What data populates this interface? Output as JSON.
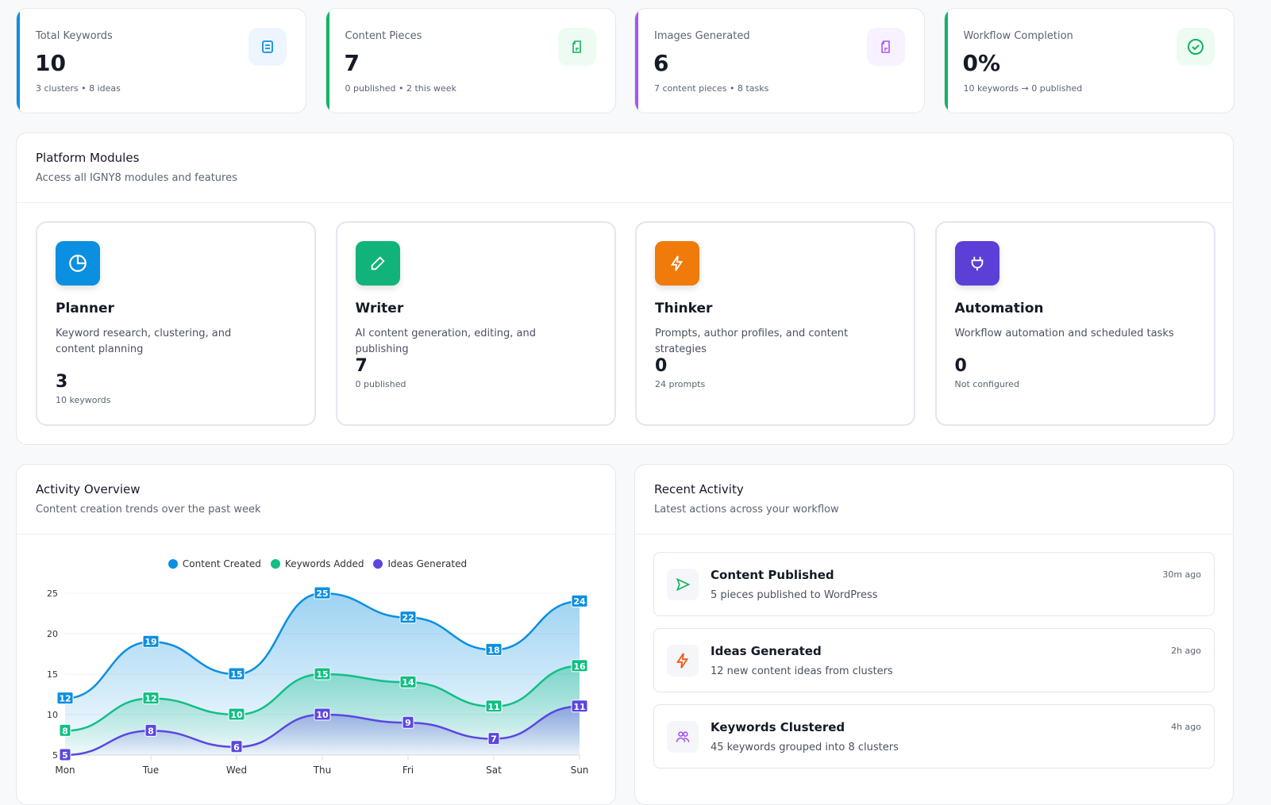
{
  "stats": [
    {
      "label": "Total Keywords",
      "value": "10",
      "sub": "3 clusters • 8 ideas",
      "color": "#0b8fe0",
      "icon": "list-doc-icon",
      "bg": "#eef5ff"
    },
    {
      "label": "Content Pieces",
      "value": "7",
      "sub": "0 published • 2 this week",
      "color": "#12b363",
      "icon": "file-icon",
      "bg": "#edfbf2"
    },
    {
      "label": "Images Generated",
      "value": "6",
      "sub": "7 content pieces • 8 tasks",
      "color": "#a855f7",
      "icon": "file-icon",
      "bg": "#f8f1ff"
    },
    {
      "label": "Workflow Completion",
      "value": "0%",
      "sub": "10 keywords → 0 published",
      "color": "#12b363",
      "icon": "check-circle-icon",
      "bg": "#edfbf2"
    }
  ],
  "modules": {
    "title": "Platform Modules",
    "subtitle": "Access all IGNY8 modules and features",
    "items": [
      {
        "name": "Planner",
        "desc": "Keyword research, clustering, and content planning",
        "value": "3",
        "sub": "10 keywords",
        "icon": "pie-chart-icon",
        "color": "#0b8fe0"
      },
      {
        "name": "Writer",
        "desc": "AI content generation, editing, and publishing",
        "value": "7",
        "sub": "0 published",
        "icon": "pencil-icon",
        "color": "#12b37a"
      },
      {
        "name": "Thinker",
        "desc": "Prompts, author profiles, and content strategies",
        "value": "0",
        "sub": "24 prompts",
        "icon": "bolt-icon",
        "color": "#f07a0a"
      },
      {
        "name": "Automation",
        "desc": "Workflow automation and scheduled tasks",
        "value": "0",
        "sub": "Not configured",
        "icon": "plug-icon",
        "color": "#5b3fd6"
      }
    ]
  },
  "activity_overview": {
    "title": "Activity Overview",
    "subtitle": "Content creation trends over the past week"
  },
  "recent": {
    "title": "Recent Activity",
    "subtitle": "Latest actions across your workflow",
    "items": [
      {
        "title": "Content Published",
        "desc": "5 pieces published to WordPress",
        "time": "30m ago",
        "icon": "send-icon"
      },
      {
        "title": "Ideas Generated",
        "desc": "12 new content ideas from clusters",
        "time": "2h ago",
        "icon": "bolt-icon"
      },
      {
        "title": "Keywords Clustered",
        "desc": "45 keywords grouped into 8 clusters",
        "time": "4h ago",
        "icon": "users-icon"
      }
    ]
  },
  "chart_data": {
    "type": "area",
    "categories": [
      "Mon",
      "Tue",
      "Wed",
      "Thu",
      "Fri",
      "Sat",
      "Sun"
    ],
    "series": [
      {
        "name": "Content Created",
        "values": [
          12,
          19,
          15,
          25,
          22,
          18,
          24
        ],
        "color": "#0b8fe0"
      },
      {
        "name": "Keywords Added",
        "values": [
          8,
          12,
          10,
          15,
          14,
          11,
          16
        ],
        "color": "#12bf85"
      },
      {
        "name": "Ideas Generated",
        "values": [
          5,
          8,
          6,
          10,
          9,
          7,
          11
        ],
        "color": "#5b47e0"
      }
    ],
    "yticks": [
      5,
      10,
      15,
      20,
      25
    ],
    "ylim": [
      5,
      25
    ],
    "legend": "top",
    "grid": true
  }
}
